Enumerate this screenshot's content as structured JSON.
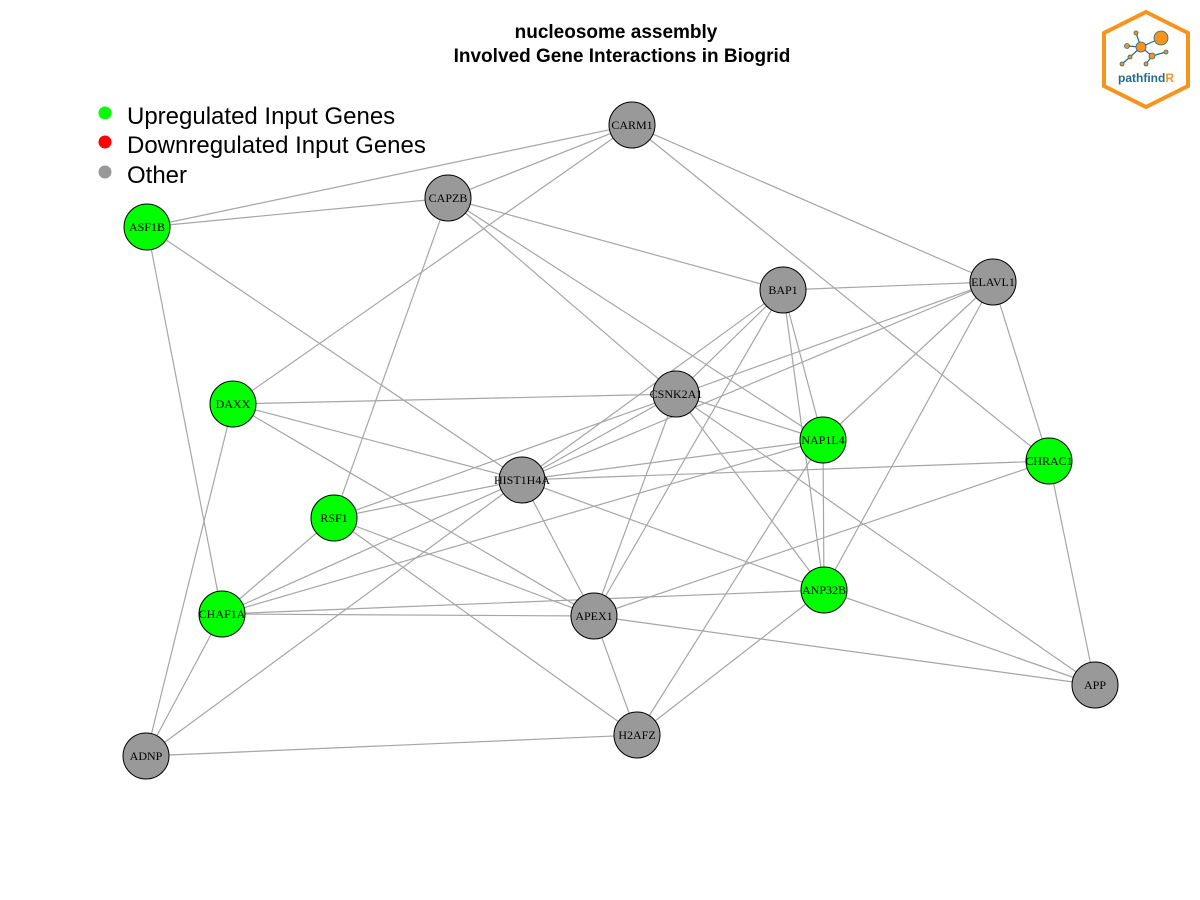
{
  "title": {
    "line1": "nucleosome assembly",
    "line2": "Involved Gene Interactions in Biogrid"
  },
  "legend": [
    {
      "label": "Upregulated Input Genes",
      "color": "#00ff00"
    },
    {
      "label": "Downregulated Input Genes",
      "color": "#ff0000"
    },
    {
      "label": "Other",
      "color": "#999999"
    }
  ],
  "logo": {
    "text_main": "pathfind",
    "text_accent": "R",
    "colors": {
      "border": "#f7941d",
      "text": "#1f6f8b",
      "accent": "#f7941d"
    }
  },
  "colors": {
    "up": "#00ff00",
    "down": "#ff0000",
    "other": "#999999",
    "edge": "#a6a6a6",
    "node_border": "#000000"
  },
  "nodes": [
    {
      "id": "CARM1",
      "status": "other"
    },
    {
      "id": "CAPZB",
      "status": "other"
    },
    {
      "id": "ASF1B",
      "status": "up"
    },
    {
      "id": "BAP1",
      "status": "other"
    },
    {
      "id": "ELAVL1",
      "status": "other"
    },
    {
      "id": "DAXX",
      "status": "up"
    },
    {
      "id": "CSNK2A1",
      "status": "other"
    },
    {
      "id": "NAP1L4",
      "status": "up"
    },
    {
      "id": "CHRAC1",
      "status": "up"
    },
    {
      "id": "HIST1H4A",
      "status": "other"
    },
    {
      "id": "RSF1",
      "status": "up"
    },
    {
      "id": "ANP32B",
      "status": "up"
    },
    {
      "id": "CHAF1A",
      "status": "up"
    },
    {
      "id": "APEX1",
      "status": "other"
    },
    {
      "id": "APP",
      "status": "other"
    },
    {
      "id": "H2AFZ",
      "status": "other"
    },
    {
      "id": "ADNP",
      "status": "other"
    }
  ],
  "edges": [
    [
      "CARM1",
      "ASF1B"
    ],
    [
      "CARM1",
      "CAPZB"
    ],
    [
      "CARM1",
      "DAXX"
    ],
    [
      "CARM1",
      "ELAVL1"
    ],
    [
      "CARM1",
      "CHRAC1"
    ],
    [
      "CAPZB",
      "ASF1B"
    ],
    [
      "CAPZB",
      "BAP1"
    ],
    [
      "CAPZB",
      "CSNK2A1"
    ],
    [
      "CAPZB",
      "NAP1L4"
    ],
    [
      "CAPZB",
      "RSF1"
    ],
    [
      "ASF1B",
      "HIST1H4A"
    ],
    [
      "ASF1B",
      "CHAF1A"
    ],
    [
      "BAP1",
      "ELAVL1"
    ],
    [
      "BAP1",
      "CSNK2A1"
    ],
    [
      "BAP1",
      "HIST1H4A"
    ],
    [
      "BAP1",
      "NAP1L4"
    ],
    [
      "BAP1",
      "ANP32B"
    ],
    [
      "BAP1",
      "APEX1"
    ],
    [
      "ELAVL1",
      "HIST1H4A"
    ],
    [
      "ELAVL1",
      "NAP1L4"
    ],
    [
      "ELAVL1",
      "CHRAC1"
    ],
    [
      "ELAVL1",
      "ANP32B"
    ],
    [
      "ELAVL1",
      "RSF1"
    ],
    [
      "DAXX",
      "CSNK2A1"
    ],
    [
      "DAXX",
      "HIST1H4A"
    ],
    [
      "DAXX",
      "APEX1"
    ],
    [
      "DAXX",
      "ADNP"
    ],
    [
      "CSNK2A1",
      "NAP1L4"
    ],
    [
      "CSNK2A1",
      "HIST1H4A"
    ],
    [
      "CSNK2A1",
      "ANP32B"
    ],
    [
      "CSNK2A1",
      "APEX1"
    ],
    [
      "CSNK2A1",
      "APP"
    ],
    [
      "NAP1L4",
      "HIST1H4A"
    ],
    [
      "NAP1L4",
      "ANP32B"
    ],
    [
      "NAP1L4",
      "H2AFZ"
    ],
    [
      "NAP1L4",
      "CHAF1A"
    ],
    [
      "CHRAC1",
      "HIST1H4A"
    ],
    [
      "CHRAC1",
      "APP"
    ],
    [
      "CHRAC1",
      "APEX1"
    ],
    [
      "HIST1H4A",
      "RSF1"
    ],
    [
      "HIST1H4A",
      "CHAF1A"
    ],
    [
      "HIST1H4A",
      "APEX1"
    ],
    [
      "HIST1H4A",
      "ANP32B"
    ],
    [
      "HIST1H4A",
      "ADNP"
    ],
    [
      "RSF1",
      "CHAF1A"
    ],
    [
      "RSF1",
      "APEX1"
    ],
    [
      "RSF1",
      "H2AFZ"
    ],
    [
      "ANP32B",
      "CHAF1A"
    ],
    [
      "ANP32B",
      "H2AFZ"
    ],
    [
      "ANP32B",
      "APP"
    ],
    [
      "CHAF1A",
      "APEX1"
    ],
    [
      "CHAF1A",
      "ADNP"
    ],
    [
      "APEX1",
      "H2AFZ"
    ],
    [
      "APEX1",
      "APP"
    ],
    [
      "H2AFZ",
      "ADNP"
    ]
  ]
}
